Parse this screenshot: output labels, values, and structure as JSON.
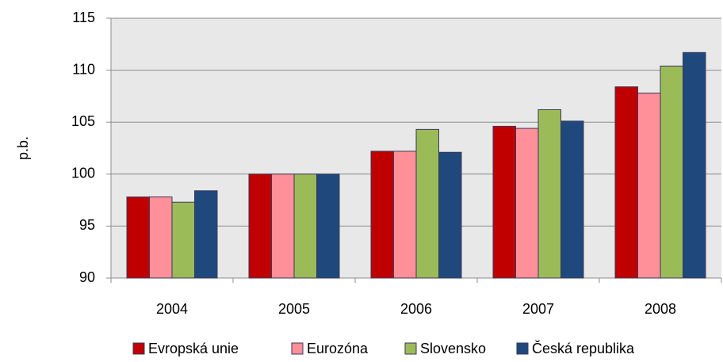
{
  "chart_data": {
    "type": "bar",
    "y_label": "p.b.",
    "categories": [
      "2004",
      "2005",
      "2006",
      "2007",
      "2008"
    ],
    "series": [
      {
        "name": "Evropská unie",
        "color": "#c00000",
        "values": [
          97.8,
          100,
          102.2,
          104.6,
          108.4
        ]
      },
      {
        "name": "Eurozóna",
        "color": "#ff8f98",
        "values": [
          97.8,
          100,
          102.2,
          104.4,
          107.8
        ]
      },
      {
        "name": "Slovensko",
        "color": "#9bbb59",
        "values": [
          97.3,
          100,
          104.3,
          106.2,
          110.4
        ]
      },
      {
        "name": "Česká republika",
        "color": "#1f497d",
        "values": [
          98.4,
          100,
          102.1,
          105.1,
          111.7
        ]
      }
    ],
    "ylim": [
      90,
      115
    ],
    "yticks": [
      90,
      95,
      100,
      105,
      110,
      115
    ],
    "grid": true,
    "legend": "bottom"
  }
}
